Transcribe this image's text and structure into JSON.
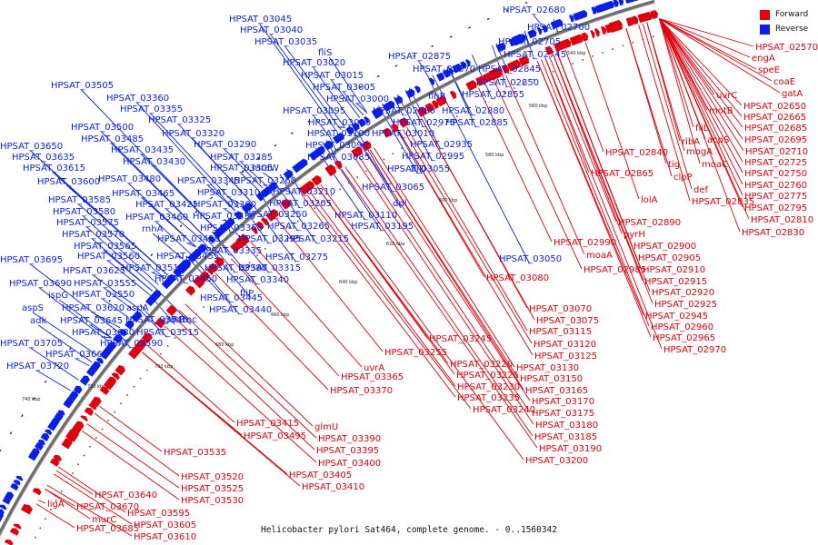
{
  "caption": "Helicobacter pylori Sat464, complete genome. - 0..1560342",
  "legend": {
    "forward_label": "Forward",
    "reverse_label": "Reverse",
    "forward_color": "#e0000c",
    "reverse_color": "#0a1fe6"
  },
  "colors": {
    "forward": "#e0000c",
    "reverse": "#0a1fe6",
    "axis": "#6d6d6d",
    "tick": "#222222"
  },
  "kbp_ticks": [
    "540 kbp",
    "560 kbp",
    "580 kbp",
    "600 kbp",
    "620 kbp",
    "640 kbp",
    "660 kbp",
    "680 kbp",
    "700 kbp",
    "720 kbp",
    "740 kbp"
  ],
  "forward_labels": [
    "HPSAT_02570",
    "engA",
    "speE",
    "coaE",
    "gatA",
    "uvrC",
    "HPSAT_02650",
    "motB",
    "HPSAT_02665",
    "HPSAT_02685",
    "HPSAT_02695",
    "acpS",
    "fliL",
    "ribA",
    "mogA",
    "HPSAT_02710",
    "HPSAT_02725",
    "HPSAT_02840",
    "moaC",
    "tig",
    "HPSAT_02750",
    "clpP",
    "HPSAT_02760",
    "def",
    "HPSAT_02775",
    "HPSAT_02865",
    "HPSAT_02835",
    "HPSAT_02795",
    "HPSAT_02810",
    "lolA",
    "HPSAT_02830",
    "HPSAT_02890",
    "pyrH",
    "HPSAT_02990",
    "HPSAT_02900",
    "moaA",
    "HPSAT_02905",
    "HPSAT_02985",
    "HPSAT_02910",
    "HPSAT_02915",
    "HPSAT_03080",
    "HPSAT_02920",
    "HPSAT_02925",
    "HPSAT_03070",
    "HPSAT_02945",
    "HPSAT_03075",
    "HPSAT_02960",
    "HPSAT_03115",
    "HPSAT_02965",
    "HPSAT_02970",
    "HPSAT_03245",
    "HPSAT_03120",
    "HPSAT_03255",
    "HPSAT_03125",
    "uvrA",
    "HPSAT_03220",
    "HPSAT_03130",
    "HPSAT_03225",
    "HPSAT_03150",
    "HPSAT_03365",
    "HPSAT_03230",
    "HPSAT_03165",
    "HPSAT_03370",
    "HPSAT_03235",
    "HPSAT_03170",
    "HPSAT_03240",
    "HPSAT_03175",
    "HPSAT_03180",
    "HPSAT_03415",
    "glmU",
    "HPSAT_03185",
    "HPSAT_03495",
    "HPSAT_03390",
    "HPSAT_03190",
    "HPSAT_03395",
    "HPSAT_03535",
    "HPSAT_03400",
    "HPSAT_03200",
    "HPSAT_03405",
    "HPSAT_03520",
    "HPSAT_03410",
    "HPSAT_03525",
    "HPSAT_03640",
    "HPSAT_03530",
    "ligA",
    "HPSAT_03670",
    "murC",
    "HPSAT_03595",
    "HPSAT_03685",
    "HPSAT_03605",
    "HPSAT_03610"
  ],
  "reverse_labels": [
    "HPSAT_02680",
    "HPSAT_03045",
    "HPSAT_02700",
    "HPSAT_03040",
    "HPSAT_02705",
    "HPSAT_03035",
    "fliS",
    "HPSAT_02745",
    "HPSAT_02875",
    "HPSAT_03020",
    "HPSAT_02870",
    "HPSAT_02845",
    "HPSAT_03015",
    "HPSAT_03505",
    "HPSAT_02850",
    "HPSAT_03005",
    "flhB",
    "HPSAT_02855",
    "HPSAT_03360",
    "HPSAT_03000",
    "HPSAT_03355",
    "HPSAT_03095",
    "HPSAT_02980",
    "HPSAT_02880",
    "HPSAT_03325",
    "HPSAT_03060",
    "HPSAT_02975",
    "HPSAT_02885",
    "HPSAT_03500",
    "HPSAT_03320",
    "HPSAT_03100",
    "HPSAT_03010",
    "HPSAT_03485",
    "HPSAT_03290",
    "HPSAT_03090",
    "HPSAT_02935",
    "HPSAT_03650",
    "HPSAT_03435",
    "HPSAT_03285",
    "HPSAT_02995",
    "HPSAT_03635",
    "HPSAT_03430",
    "HPSAT_03305",
    "mraW",
    "HPSAT_03085",
    "HPSAT_03615",
    "HPSAT_03480",
    "HPSAT_03345",
    "HPSAT_03260",
    "HPSAT_03055",
    "fliD",
    "HPSAT_03600",
    "HPSAT_03465",
    "HPSAT_03310",
    "HPSAT_03210",
    "HPSAT_03065",
    "HPSAT_03585",
    "HPSAT_03425",
    "HPSAT_03300",
    "HPSAT_03205",
    "ddl",
    "HPSAT_03580",
    "HPSAT_03460",
    "HPSAT_03330",
    "HPSAT_03250",
    "HPSAT_03110",
    "HPSAT_03575",
    "rnhA",
    "HPSAT_03350",
    "HPSAT_03265",
    "HPSAT_03195",
    "HPSAT_03570",
    "HPSAT_03420",
    "HPSAT_03295",
    "HPSAT_03215",
    "HPSAT_03565",
    "HPSAT_03455",
    "HPSAT_03335",
    "HPSAT_03275",
    "HPSAT_03050",
    "HPSAT_03695",
    "HPSAT_03560",
    "HPSAT_03380",
    "HPSAT_03315",
    "HPSAT_03625",
    "HPSAT_03510",
    "HPSAT_03450",
    "HPSAT_03340",
    "HPSAT_03690",
    "HPSAT_03555",
    "fliP",
    "ispG",
    "HPSAT_03550",
    "HPSAT_03445",
    "aspS",
    "HPSAT_03620",
    "aspA",
    "HPSAT_03440",
    "adk",
    "HPSAT_03645",
    "HPSAT_03540",
    "gatB",
    "rnc",
    "HPSAT_03630",
    "HPSAT_03515",
    "HPSAT_03705",
    "HPSAT_03590",
    "HPSAT_03660",
    "HPSAT_03720"
  ]
}
